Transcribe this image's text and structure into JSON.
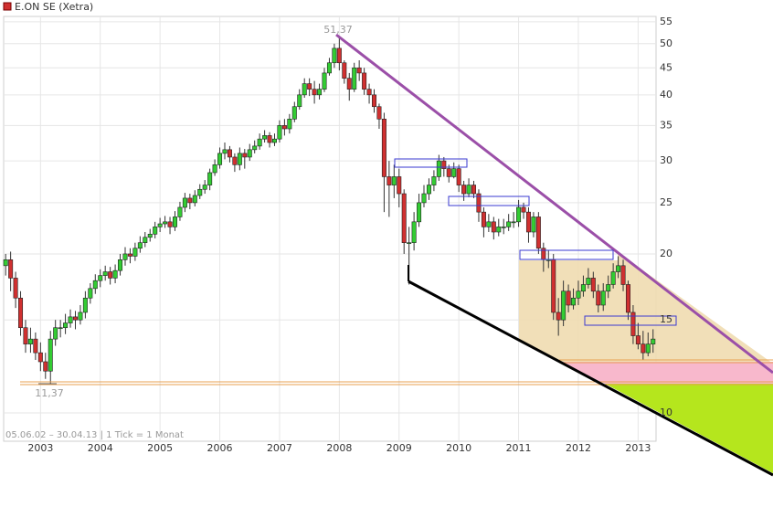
{
  "chart_data": {
    "type": "candlestick",
    "title": "E.ON SE (Xetra)",
    "high_label": "51,37",
    "low_label": "11,37",
    "footer": "05.06.02 – 30.04.13 | 1 Tick = 1 Monat",
    "log_y": true,
    "grid": true,
    "up_color": "#33cc33",
    "down_color": "#d03030",
    "xlim": [
      -0.4,
      130.6
    ],
    "ylim": [
      8.84,
      56.3
    ],
    "yticks": [
      10,
      15,
      20,
      25,
      30,
      35,
      40,
      45,
      50,
      55
    ],
    "xticks": [
      {
        "value": 7,
        "label": "2003"
      },
      {
        "value": 19,
        "label": "2004"
      },
      {
        "value": 31,
        "label": "2005"
      },
      {
        "value": 43,
        "label": "2006"
      },
      {
        "value": 55,
        "label": "2007"
      },
      {
        "value": 67,
        "label": "2008"
      },
      {
        "value": 79,
        "label": "2009"
      },
      {
        "value": 91,
        "label": "2010"
      },
      {
        "value": 103,
        "label": "2011"
      },
      {
        "value": 115,
        "label": "2012"
      },
      {
        "value": 127,
        "label": "2013"
      }
    ],
    "open": [
      19.0,
      19.5,
      18,
      16.5,
      14.5,
      13.5,
      13.8,
      13.0,
      12.5,
      12.0,
      13.8,
      14.5,
      14.5,
      14.8,
      15.2,
      15.0,
      15.5,
      16.5,
      17.2,
      17.8,
      18.2,
      18.5,
      18.0,
      18.6,
      19.5,
      20.0,
      19.8,
      20.5,
      21.0,
      21.5,
      21.8,
      22.5,
      22.8,
      23.0,
      22.5,
      23.5,
      24.5,
      25.5,
      25.0,
      25.8,
      26.5,
      27.0,
      28.5,
      29.5,
      31,
      31.5,
      30.5,
      29.5,
      31,
      30.5,
      31.5,
      32,
      33,
      33.5,
      32.5,
      33,
      35,
      34.5,
      36,
      38,
      40,
      42,
      41,
      40,
      41,
      44,
      46,
      49,
      46,
      43,
      41,
      45,
      44,
      41,
      40,
      38,
      36,
      28,
      27,
      28,
      26,
      21,
      21,
      23,
      25,
      26,
      27,
      28,
      30,
      29,
      28,
      29,
      27,
      26,
      27,
      26,
      24,
      22.5,
      23,
      22,
      22.5,
      22.5,
      23,
      23,
      24.5,
      24,
      22,
      23.5,
      20.5,
      19.5,
      19.5,
      15.5,
      15,
      17,
      16,
      16.5,
      17,
      17.5,
      18,
      17,
      16,
      17,
      17.5,
      18.5,
      19,
      17.5,
      15.5,
      14,
      13.5,
      13,
      13.5
    ],
    "high": [
      20.0,
      20.2,
      18.5,
      17.0,
      15.0,
      14.5,
      14.2,
      13.6,
      13.0,
      14.3,
      15.0,
      15.0,
      15.4,
      15.7,
      15.6,
      16.0,
      17.0,
      17.6,
      18.3,
      18.7,
      19.0,
      18.9,
      19.1,
      20.0,
      20.6,
      20.5,
      21.0,
      21.6,
      22.0,
      22.3,
      23.0,
      23.4,
      23.6,
      23.5,
      24.1,
      25.1,
      26.1,
      26.0,
      26.4,
      27.1,
      27.6,
      29.0,
      30.2,
      31.8,
      32.5,
      32.0,
      31.0,
      31.8,
      31.6,
      32.3,
      32.8,
      33.8,
      34.3,
      34.0,
      33.8,
      35.8,
      36.0,
      36.8,
      38.8,
      41.0,
      43.0,
      43.0,
      42.5,
      42.0,
      45.0,
      47.0,
      50.0,
      51.37,
      46.5,
      44.0,
      46.0,
      46.5,
      45.0,
      42.0,
      41.0,
      38.5,
      37.0,
      30.0,
      29.5,
      29.0,
      26.5,
      22.5,
      24.0,
      26.0,
      27.0,
      27.8,
      28.8,
      30.8,
      30.5,
      29.5,
      29.8,
      29.5,
      27.5,
      27.8,
      27.5,
      26.5,
      24.5,
      23.8,
      23.5,
      23.3,
      23.3,
      23.8,
      24.0,
      25.3,
      25.0,
      24.5,
      24.0,
      24.0,
      21.0,
      20.3,
      20.0,
      16.5,
      17.8,
      17.5,
      17.2,
      17.8,
      18.2,
      18.8,
      18.5,
      17.5,
      17.6,
      18.2,
      19.2,
      19.8,
      19.5,
      17.8,
      16.0,
      14.8,
      14.3,
      14.2,
      14.4
    ],
    "low": [
      18.2,
      17.0,
      15.8,
      14.0,
      13.0,
      13.0,
      12.6,
      12.0,
      11.6,
      11.37,
      13.4,
      13.9,
      14.1,
      14.5,
      14.4,
      14.7,
      15.1,
      16.1,
      16.8,
      17.3,
      17.8,
      17.5,
      17.6,
      18.2,
      19.0,
      19.2,
      19.4,
      20.1,
      20.6,
      21.1,
      21.4,
      22.0,
      22.4,
      21.8,
      22.1,
      23.1,
      24.0,
      24.3,
      24.6,
      25.4,
      26.0,
      26.4,
      28.1,
      29.0,
      30.2,
      29.8,
      28.6,
      28.8,
      29.0,
      30.0,
      31.0,
      31.5,
      32.5,
      31.8,
      32.0,
      32.5,
      33.5,
      33.8,
      35.5,
      37.5,
      39.5,
      39.8,
      38.5,
      39.2,
      40.5,
      43.5,
      45.0,
      44.5,
      42.0,
      39.0,
      40.5,
      42.5,
      40.0,
      38.5,
      37.0,
      34.5,
      24.0,
      23.5,
      25.5,
      24.5,
      20.0,
      17.5,
      20.3,
      22.5,
      24.5,
      25.3,
      26.3,
      27.5,
      28.0,
      27.3,
      27.8,
      26.2,
      25.2,
      25.6,
      25.5,
      23.0,
      21.5,
      22.0,
      21.3,
      21.6,
      21.8,
      22.1,
      22.4,
      22.5,
      23.3,
      21.0,
      21.5,
      20.0,
      18.5,
      18.8,
      15.0,
      14.0,
      14.6,
      15.5,
      15.7,
      16.0,
      16.6,
      17.2,
      16.5,
      15.5,
      15.6,
      16.5,
      17.2,
      18.0,
      17.0,
      15.0,
      13.5,
      13.2,
      12.6,
      12.8,
      13.0
    ],
    "close": [
      19.5,
      18,
      16.5,
      14.5,
      13.5,
      13.8,
      13.0,
      12.5,
      12.0,
      13.8,
      14.5,
      14.5,
      14.8,
      15.2,
      15.0,
      15.5,
      16.5,
      17.2,
      17.8,
      18.2,
      18.5,
      18.0,
      18.6,
      19.5,
      20.0,
      19.8,
      20.5,
      21.0,
      21.5,
      21.8,
      22.5,
      22.8,
      23.0,
      22.5,
      23.5,
      24.5,
      25.5,
      25.0,
      25.8,
      26.5,
      27.0,
      28.5,
      29.5,
      31,
      31.5,
      30.5,
      29.5,
      31,
      30.5,
      31.5,
      32,
      33,
      33.5,
      32.5,
      33,
      35,
      34.5,
      36,
      38,
      40,
      42,
      41,
      40,
      41,
      44,
      46,
      49,
      46,
      43,
      41,
      45,
      44,
      41,
      40,
      38,
      36,
      28,
      27,
      28,
      26,
      21,
      21,
      23,
      25,
      26,
      27,
      28,
      30,
      29,
      28,
      29,
      27,
      26,
      27,
      26,
      24,
      22.5,
      23,
      22,
      22.5,
      22.5,
      23,
      23,
      24.5,
      24,
      22,
      23.5,
      20.5,
      19.5,
      19.5,
      15.5,
      15,
      17,
      16,
      16.5,
      17,
      17.5,
      18,
      17,
      16,
      17,
      17.5,
      18.5,
      19,
      17.5,
      15.5,
      14,
      13.5,
      13,
      13.5,
      13.8
    ]
  }
}
